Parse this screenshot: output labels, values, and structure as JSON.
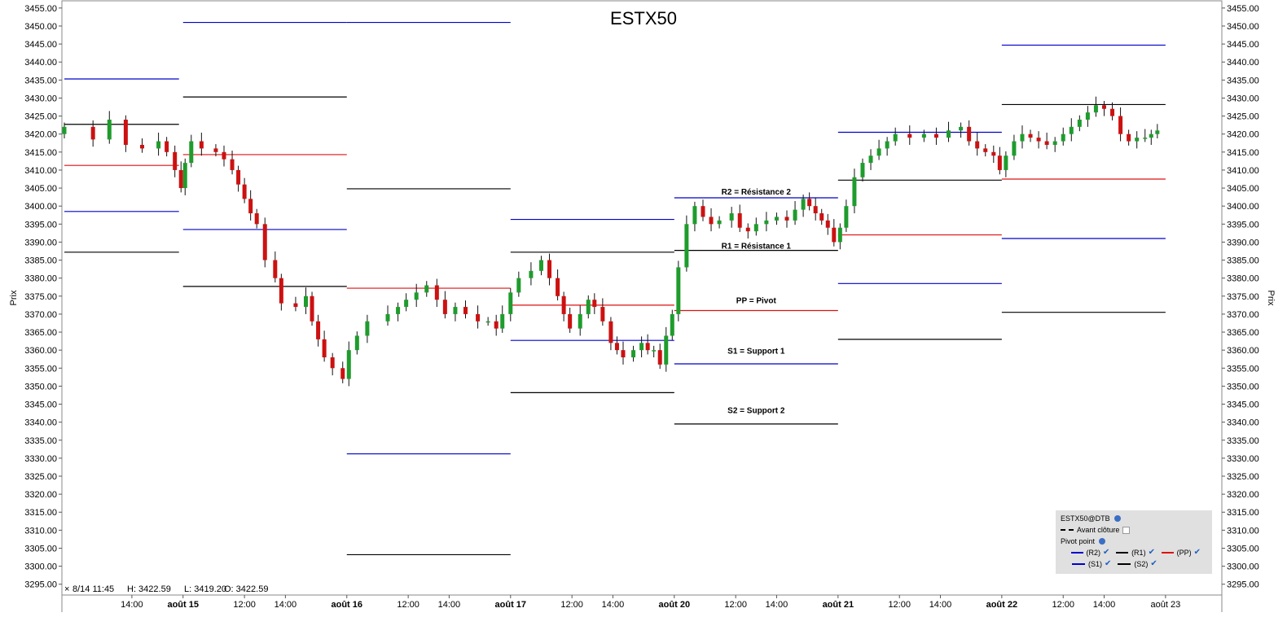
{
  "chart_data": {
    "type": "candlestick",
    "title": "ESTX50",
    "ylabel": "Prix",
    "ylim": [
      3292,
      3457
    ],
    "y_ticks": [
      3295,
      3300,
      3305,
      3310,
      3315,
      3320,
      3325,
      3330,
      3335,
      3340,
      3345,
      3350,
      3355,
      3360,
      3365,
      3370,
      3375,
      3380,
      3385,
      3390,
      3395,
      3400,
      3405,
      3410,
      3415,
      3420,
      3425,
      3430,
      3435,
      3440,
      3445,
      3450,
      3455
    ],
    "x_ticks": [
      {
        "label": "14:00",
        "x": 15.5,
        "bold": false
      },
      {
        "label": "août 15",
        "x": 18,
        "bold": true
      },
      {
        "label": "12:00",
        "x": 21,
        "bold": false
      },
      {
        "label": "14:00",
        "x": 23,
        "bold": false
      },
      {
        "label": "août 16",
        "x": 26,
        "bold": true
      },
      {
        "label": "12:00",
        "x": 29,
        "bold": false
      },
      {
        "label": "14:00",
        "x": 31,
        "bold": false
      },
      {
        "label": "août 17",
        "x": 34,
        "bold": true
      },
      {
        "label": "12:00",
        "x": 37,
        "bold": false
      },
      {
        "label": "14:00",
        "x": 39,
        "bold": false
      },
      {
        "label": "août 20",
        "x": 42,
        "bold": true
      },
      {
        "label": "12:00",
        "x": 45,
        "bold": false
      },
      {
        "label": "14:00",
        "x": 47,
        "bold": false
      },
      {
        "label": "août 21",
        "x": 50,
        "bold": true
      },
      {
        "label": "12:00",
        "x": 53,
        "bold": false
      },
      {
        "label": "14:00",
        "x": 55,
        "bold": false
      },
      {
        "label": "août 22",
        "x": 58,
        "bold": true
      },
      {
        "label": "12:00",
        "x": 61,
        "bold": false
      },
      {
        "label": "14:00",
        "x": 63,
        "bold": false
      },
      {
        "label": "août 23",
        "x": 66,
        "bold": false
      }
    ],
    "x_range": [
      12.2,
      67
    ],
    "pivot_sessions": [
      {
        "x0": 12.2,
        "x1": 17.8,
        "R2": 3435.3,
        "R1": 3422.7,
        "PP": 3411.3,
        "S1": 3398.5,
        "S2": 3387.2
      },
      {
        "x0": 18,
        "x1": 26,
        "R2": 3451.0,
        "R1": 3430.3,
        "PP": 3414.3,
        "S1": 3393.5,
        "S2": 3377.7
      },
      {
        "x0": 26,
        "x1": 34,
        "R2": 3451.0,
        "R1": 3404.8,
        "PP": 3377.2,
        "S1": 3331.2,
        "S2": 3303.2
      },
      {
        "x0": 34,
        "x1": 42,
        "R2": 3396.3,
        "R1": 3387.2,
        "PP": 3372.5,
        "S1": 3362.7,
        "S2": 3348.2
      },
      {
        "x0": 42,
        "x1": 50,
        "R2": 3402.3,
        "R1": 3387.7,
        "PP": 3371.0,
        "S1": 3356.2,
        "S2": 3339.5
      },
      {
        "x0": 50,
        "x1": 58,
        "R2": 3420.5,
        "R1": 3407.2,
        "PP": 3392.0,
        "S1": 3378.5,
        "S2": 3363.0
      },
      {
        "x0": 58,
        "x1": 66,
        "R2": 3444.7,
        "R1": 3428.2,
        "PP": 3407.5,
        "S1": 3391.0,
        "S2": 3370.5
      }
    ],
    "annotations": [
      {
        "text": "R2 = Résistance 2",
        "x": 46,
        "y": 3403.2
      },
      {
        "text": "R1 = Résistance 1",
        "x": 46,
        "y": 3388.2
      },
      {
        "text": "PP = Pivot",
        "x": 46,
        "y": 3373.0
      },
      {
        "text": "S1 = Support 1",
        "x": 46,
        "y": 3359.0
      },
      {
        "text": "S2 = Support 2",
        "x": 46,
        "y": 3342.5
      }
    ],
    "colors": {
      "up": "#1e9c2c",
      "down": "#cc1111",
      "R2": "#0000cc",
      "S1": "#0000cc",
      "R1": "#000000",
      "S2": "#000000",
      "PP": "#dd1111"
    },
    "candles": [
      [
        12.2,
        3422
      ],
      [
        13.6,
        3418.5
      ],
      [
        14.4,
        3424
      ],
      [
        15.2,
        3417
      ],
      [
        16.0,
        3416
      ],
      [
        16.8,
        3418
      ],
      [
        17.2,
        3415
      ],
      [
        17.6,
        3410
      ],
      [
        17.9,
        3405
      ],
      [
        18.1,
        3412
      ],
      [
        18.4,
        3418
      ],
      [
        18.9,
        3416
      ],
      [
        19.6,
        3415
      ],
      [
        20.0,
        3413
      ],
      [
        20.4,
        3410
      ],
      [
        20.7,
        3406
      ],
      [
        21.0,
        3402
      ],
      [
        21.3,
        3398
      ],
      [
        21.6,
        3395
      ],
      [
        22.0,
        3385
      ],
      [
        22.5,
        3380
      ],
      [
        22.8,
        3373
      ],
      [
        23.5,
        3372
      ],
      [
        24.0,
        3375
      ],
      [
        24.3,
        3368
      ],
      [
        24.6,
        3363
      ],
      [
        24.9,
        3358
      ],
      [
        25.3,
        3355
      ],
      [
        25.8,
        3352
      ],
      [
        26.1,
        3360
      ],
      [
        26.5,
        3364
      ],
      [
        27.0,
        3368
      ],
      [
        28.0,
        3370
      ],
      [
        28.5,
        3372
      ],
      [
        28.9,
        3374
      ],
      [
        29.4,
        3376
      ],
      [
        29.9,
        3378
      ],
      [
        30.4,
        3374
      ],
      [
        30.8,
        3370
      ],
      [
        31.3,
        3372
      ],
      [
        31.8,
        3370
      ],
      [
        32.4,
        3368
      ],
      [
        32.9,
        3368
      ],
      [
        33.3,
        3366
      ],
      [
        33.6,
        3370
      ],
      [
        34.0,
        3376
      ],
      [
        34.4,
        3380
      ],
      [
        35.0,
        3382
      ],
      [
        35.5,
        3385
      ],
      [
        35.9,
        3380
      ],
      [
        36.3,
        3375
      ],
      [
        36.6,
        3370
      ],
      [
        36.9,
        3366
      ],
      [
        37.4,
        3370
      ],
      [
        37.8,
        3374
      ],
      [
        38.1,
        3372
      ],
      [
        38.5,
        3368
      ],
      [
        38.9,
        3362
      ],
      [
        39.2,
        3360
      ],
      [
        39.5,
        3358
      ],
      [
        40.0,
        3360
      ],
      [
        40.4,
        3362
      ],
      [
        40.7,
        3360
      ],
      [
        41.0,
        3360
      ],
      [
        41.3,
        3356
      ],
      [
        41.6,
        3364
      ],
      [
        41.9,
        3370
      ],
      [
        42.2,
        3383
      ],
      [
        42.6,
        3395
      ],
      [
        43.0,
        3400
      ],
      [
        43.4,
        3397
      ],
      [
        43.8,
        3395
      ],
      [
        44.2,
        3396
      ],
      [
        44.8,
        3398
      ],
      [
        45.2,
        3394
      ],
      [
        45.6,
        3393
      ],
      [
        46.0,
        3395
      ],
      [
        46.5,
        3396
      ],
      [
        47.0,
        3397
      ],
      [
        47.5,
        3396
      ],
      [
        47.9,
        3399
      ],
      [
        48.3,
        3402
      ],
      [
        48.6,
        3400
      ],
      [
        48.9,
        3398
      ],
      [
        49.2,
        3396
      ],
      [
        49.5,
        3394
      ],
      [
        49.8,
        3390
      ],
      [
        50.1,
        3394
      ],
      [
        50.4,
        3400
      ],
      [
        50.8,
        3408
      ],
      [
        51.2,
        3412
      ],
      [
        51.6,
        3414
      ],
      [
        52.0,
        3416
      ],
      [
        52.4,
        3418
      ],
      [
        52.8,
        3420
      ],
      [
        53.5,
        3419
      ],
      [
        54.2,
        3420
      ],
      [
        54.8,
        3419
      ],
      [
        55.4,
        3421
      ],
      [
        56.0,
        3422
      ],
      [
        56.4,
        3418
      ],
      [
        56.8,
        3416
      ],
      [
        57.2,
        3415
      ],
      [
        57.6,
        3414
      ],
      [
        57.9,
        3410
      ],
      [
        58.2,
        3414
      ],
      [
        58.6,
        3418
      ],
      [
        59.0,
        3420
      ],
      [
        59.4,
        3419
      ],
      [
        59.8,
        3418
      ],
      [
        60.2,
        3417
      ],
      [
        60.6,
        3418
      ],
      [
        61.0,
        3420
      ],
      [
        61.4,
        3422
      ],
      [
        61.8,
        3424
      ],
      [
        62.2,
        3426
      ],
      [
        62.6,
        3428
      ],
      [
        63.0,
        3427
      ],
      [
        63.4,
        3425
      ],
      [
        63.8,
        3420
      ],
      [
        64.2,
        3418
      ],
      [
        64.6,
        3419
      ],
      [
        65.0,
        3419
      ],
      [
        65.3,
        3420
      ],
      [
        65.6,
        3421
      ]
    ]
  },
  "info_bar": {
    "time": "8/14 11:45",
    "high": "H: 3422.59",
    "low": "L: 3419.20",
    "open": "O: 3422.59"
  },
  "legend": {
    "instrument": "ESTX50@DTB",
    "pre_close": "Avant clôture",
    "indicator": "Pivot point",
    "items": [
      {
        "label": "(R2)",
        "color": "#0000cc"
      },
      {
        "label": "(R1)",
        "color": "#000000"
      },
      {
        "label": "(PP)",
        "color": "#dd1111"
      },
      {
        "label": "(S1)",
        "color": "#0000cc"
      },
      {
        "label": "(S2)",
        "color": "#000000"
      }
    ],
    "check_icon": "checkmark-icon",
    "globe_icon": "globe-icon"
  }
}
